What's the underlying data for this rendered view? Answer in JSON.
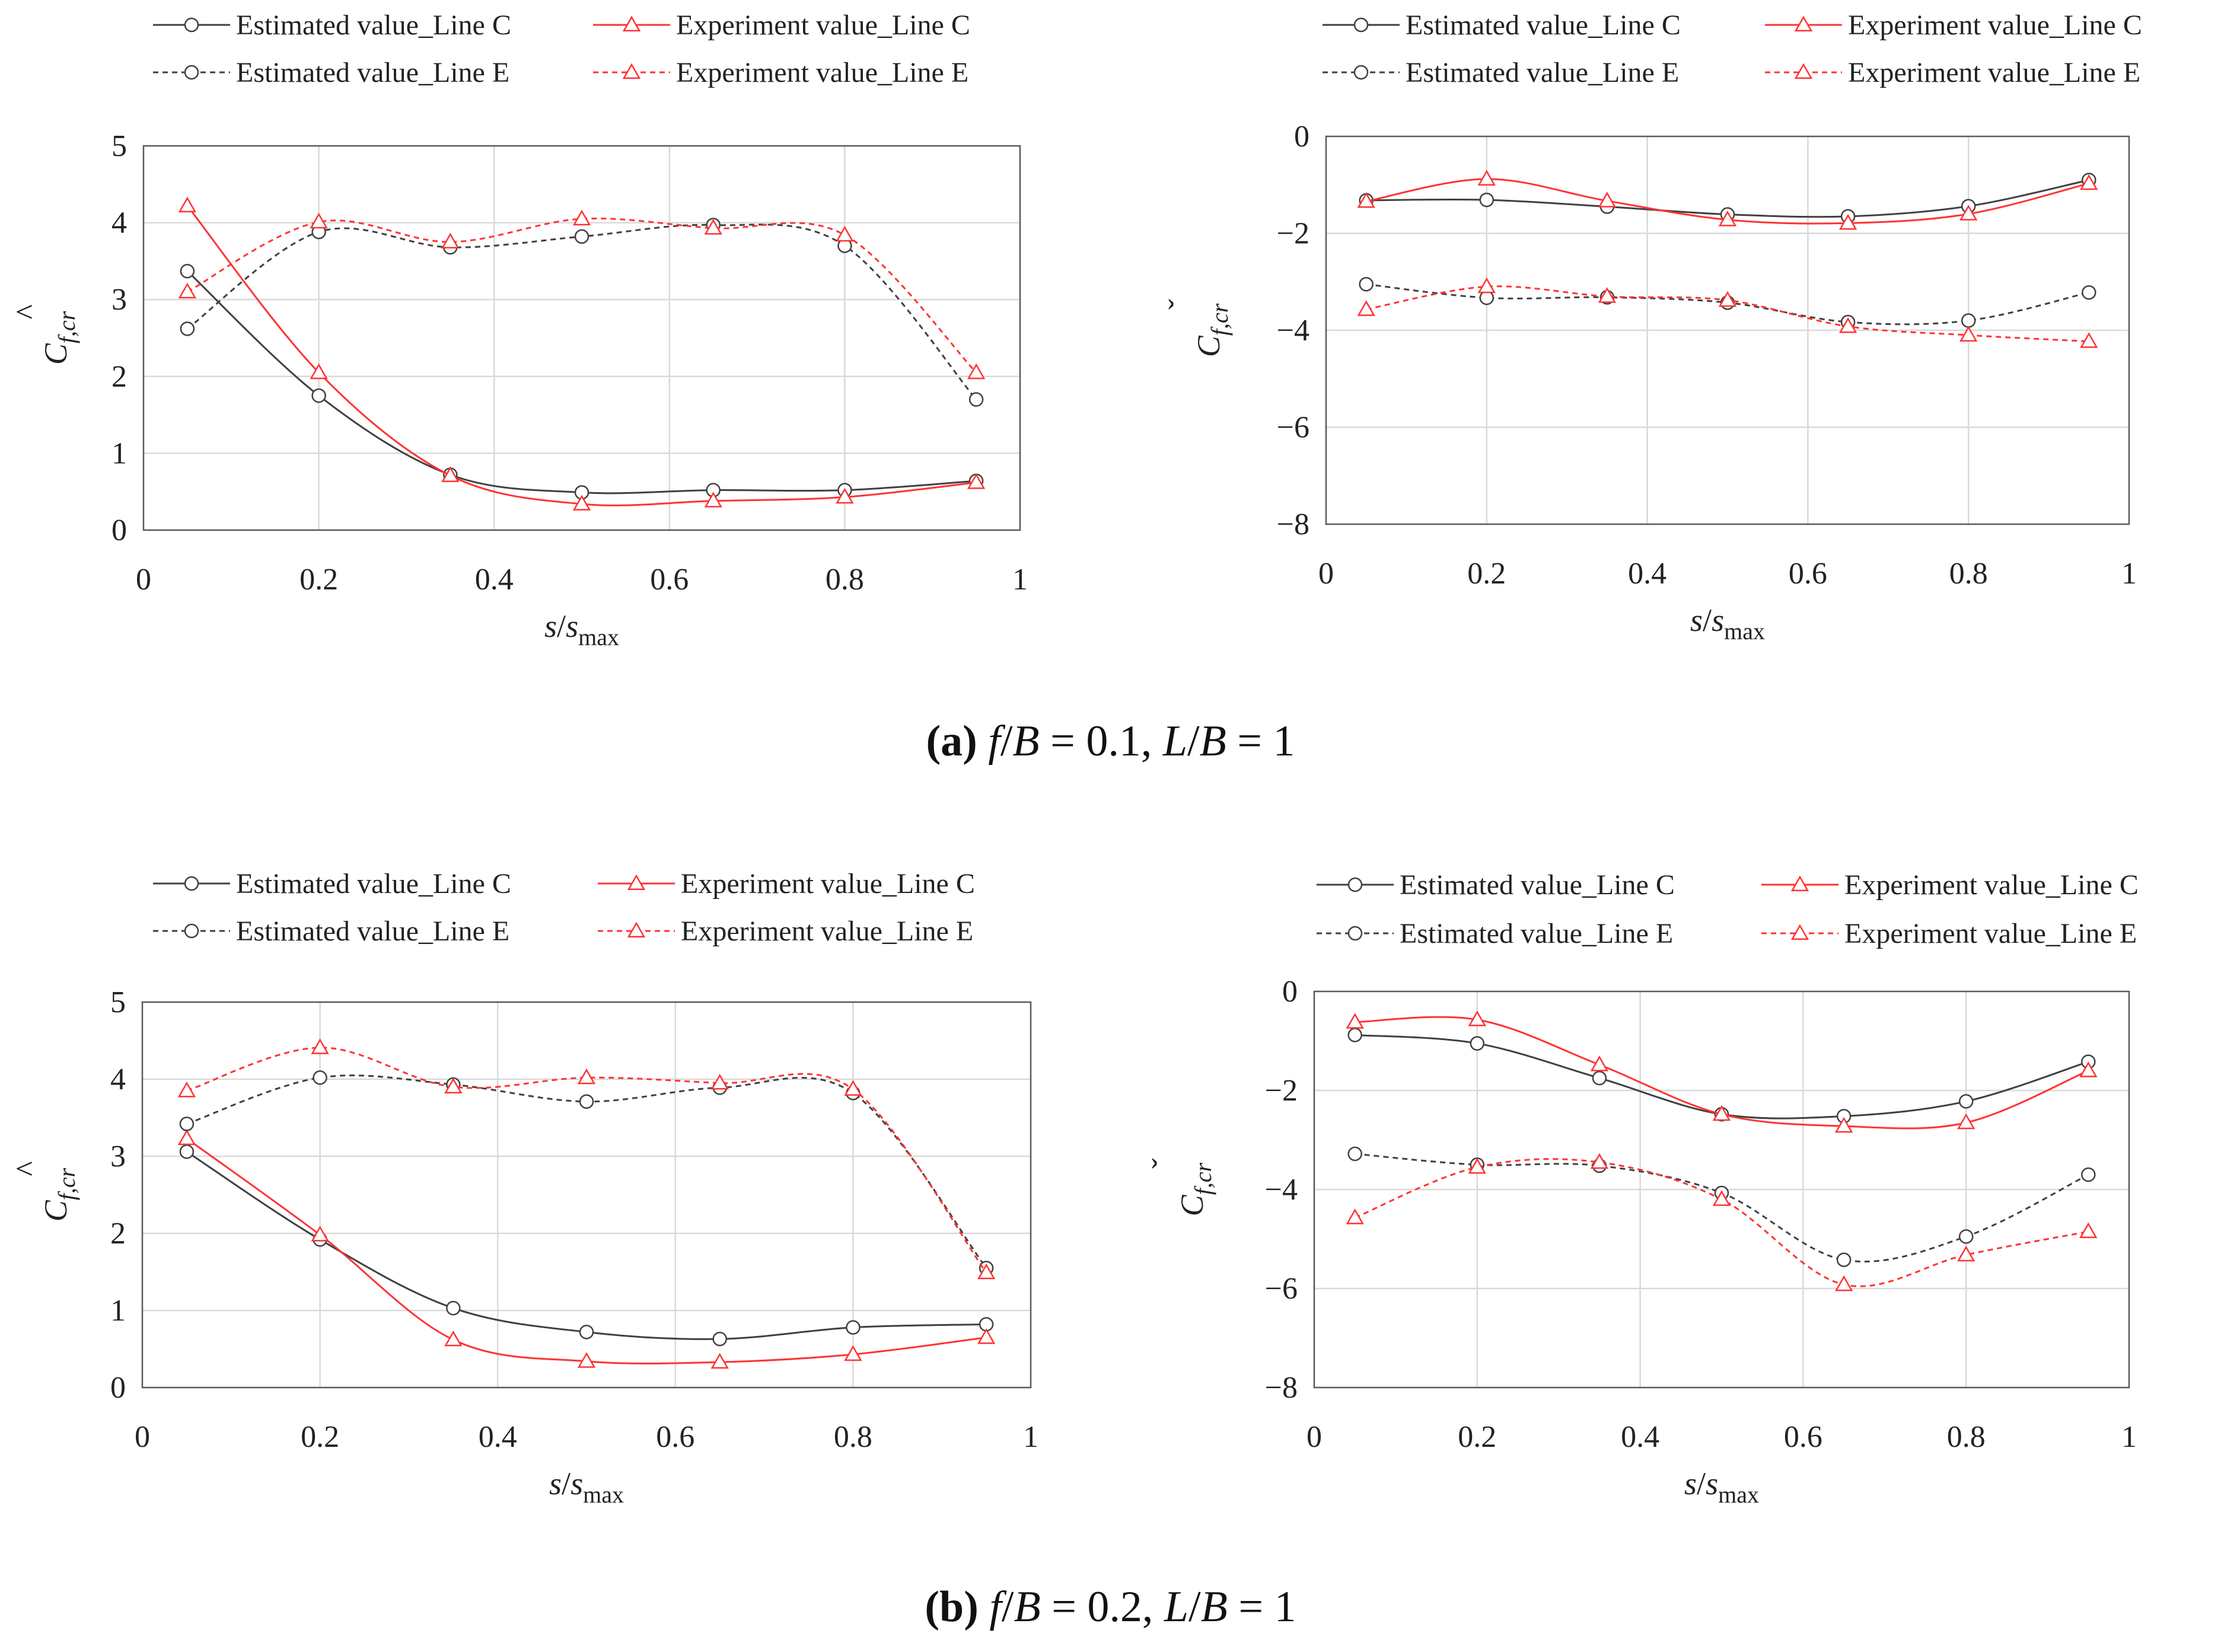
{
  "colors": {
    "estimated": "#404040",
    "experiment": "#ff3333",
    "grid": "#d9d9d9",
    "frame": "#595959"
  },
  "legend": {
    "est_c": "Estimated value_Line C",
    "exp_c": "Experiment value_Line C",
    "est_e": "Estimated value_Line E",
    "exp_e": "Experiment value_Line E"
  },
  "axis": {
    "x_label_s": "s",
    "x_label_slash": "/",
    "x_label_smax": "s",
    "x_label_sub": "max"
  },
  "captions": [
    {
      "label": "(a)",
      "f_var": "f",
      "over": "/",
      "b_var": "B",
      "f_eq": " = 0.1, ",
      "l_var": "L",
      "b_var2": "B",
      "l_eq": " = 1"
    },
    {
      "label": "(b)",
      "f_var": "f",
      "over": "/",
      "b_var": "B",
      "f_eq": " = 0.2, ",
      "l_var": "L",
      "b_var2": "B",
      "l_eq": " = 1"
    }
  ],
  "chart_data": [
    {
      "id": "a-left",
      "type": "line",
      "ylabel": "Ĉf,cr",
      "ylabel_base": "C",
      "ylabel_accent": "^",
      "ylabel_sub": "f,cr",
      "xlabel": "s/smax",
      "xlim": [
        0,
        1
      ],
      "ylim": [
        0,
        5
      ],
      "xticks": [
        "0",
        "0.2",
        "0.4",
        "0.6",
        "0.8",
        "1"
      ],
      "yticks": [
        "0",
        "1",
        "2",
        "3",
        "4",
        "5"
      ],
      "x": [
        0.05,
        0.2,
        0.35,
        0.5,
        0.65,
        0.8,
        0.95
      ],
      "series": [
        {
          "name": "Estimated value_Line C",
          "values": [
            3.37,
            1.75,
            0.72,
            0.49,
            0.52,
            0.52,
            0.64
          ]
        },
        {
          "name": "Experiment value_Line C",
          "values": [
            4.22,
            2.05,
            0.71,
            0.34,
            0.38,
            0.43,
            0.62
          ]
        },
        {
          "name": "Estimated value_Line E",
          "values": [
            2.62,
            3.88,
            3.68,
            3.82,
            3.97,
            3.7,
            1.7
          ]
        },
        {
          "name": "Experiment value_Line E",
          "values": [
            3.1,
            4.01,
            3.75,
            4.05,
            3.93,
            3.84,
            2.05
          ]
        }
      ]
    },
    {
      "id": "a-right",
      "type": "line",
      "ylabel": "Čf,cr",
      "ylabel_base": "C",
      "ylabel_accent": "ˇ",
      "ylabel_sub": "f,cr",
      "xlabel": "s/smax",
      "xlim": [
        0,
        1
      ],
      "ylim": [
        -8,
        0
      ],
      "xticks": [
        "0",
        "0.2",
        "0.4",
        "0.6",
        "0.8",
        "1"
      ],
      "yticks": [
        "−8",
        "−6",
        "−4",
        "−2",
        "0"
      ],
      "x": [
        0.05,
        0.2,
        0.35,
        0.5,
        0.65,
        0.8,
        0.95
      ],
      "series": [
        {
          "name": "Estimated value_Line C",
          "values": [
            -1.32,
            -1.31,
            -1.45,
            -1.61,
            -1.65,
            -1.44,
            -0.9
          ]
        },
        {
          "name": "Experiment value_Line C",
          "values": [
            -1.34,
            -0.88,
            -1.33,
            -1.72,
            -1.79,
            -1.6,
            -0.97
          ]
        },
        {
          "name": "Estimated value_Line E",
          "values": [
            -3.05,
            -3.33,
            -3.32,
            -3.43,
            -3.83,
            -3.8,
            -3.22
          ]
        },
        {
          "name": "Experiment value_Line E",
          "values": [
            -3.57,
            -3.1,
            -3.3,
            -3.38,
            -3.92,
            -4.1,
            -4.23
          ]
        }
      ]
    },
    {
      "id": "b-left",
      "type": "line",
      "ylabel": "Ĉf,cr",
      "ylabel_base": "C",
      "ylabel_accent": "^",
      "ylabel_sub": "f,cr",
      "xlabel": "s/smax",
      "xlim": [
        0,
        1
      ],
      "ylim": [
        0,
        5
      ],
      "xticks": [
        "0",
        "0.2",
        "0.4",
        "0.6",
        "0.8",
        "1"
      ],
      "yticks": [
        "0",
        "1",
        "2",
        "3",
        "4",
        "5"
      ],
      "x": [
        0.05,
        0.2,
        0.35,
        0.5,
        0.65,
        0.8,
        0.95
      ],
      "series": [
        {
          "name": "Estimated value_Line C",
          "values": [
            3.06,
            1.92,
            1.03,
            0.72,
            0.63,
            0.78,
            0.82
          ]
        },
        {
          "name": "Experiment value_Line C",
          "values": [
            3.23,
            1.98,
            0.62,
            0.34,
            0.33,
            0.43,
            0.65
          ]
        },
        {
          "name": "Estimated value_Line E",
          "values": [
            3.42,
            4.02,
            3.93,
            3.71,
            3.89,
            3.82,
            1.55
          ]
        },
        {
          "name": "Experiment value_Line E",
          "values": [
            3.85,
            4.41,
            3.9,
            4.02,
            3.95,
            3.87,
            1.49
          ]
        }
      ]
    },
    {
      "id": "b-right",
      "type": "line",
      "ylabel": "Čf,cr",
      "ylabel_base": "C",
      "ylabel_accent": "ˇ",
      "ylabel_sub": "f,cr",
      "xlabel": "s/smax",
      "xlim": [
        0,
        1
      ],
      "ylim": [
        -8,
        0
      ],
      "xticks": [
        "0",
        "0.2",
        "0.4",
        "0.6",
        "0.8",
        "1"
      ],
      "yticks": [
        "−8",
        "−6",
        "−4",
        "−2",
        "0"
      ],
      "x": [
        0.05,
        0.2,
        0.35,
        0.5,
        0.65,
        0.8,
        0.95
      ],
      "series": [
        {
          "name": "Estimated value_Line C",
          "values": [
            -0.88,
            -1.05,
            -1.75,
            -2.48,
            -2.52,
            -2.22,
            -1.42
          ]
        },
        {
          "name": "Experiment value_Line C",
          "values": [
            -0.62,
            -0.57,
            -1.48,
            -2.48,
            -2.72,
            -2.65,
            -1.6
          ]
        },
        {
          "name": "Estimated value_Line E",
          "values": [
            -3.28,
            -3.5,
            -3.52,
            -4.07,
            -5.42,
            -4.95,
            -3.7
          ]
        },
        {
          "name": "Experiment value_Line E",
          "values": [
            -4.57,
            -3.55,
            -3.45,
            -4.2,
            -5.92,
            -5.32,
            -4.85
          ]
        }
      ]
    }
  ]
}
